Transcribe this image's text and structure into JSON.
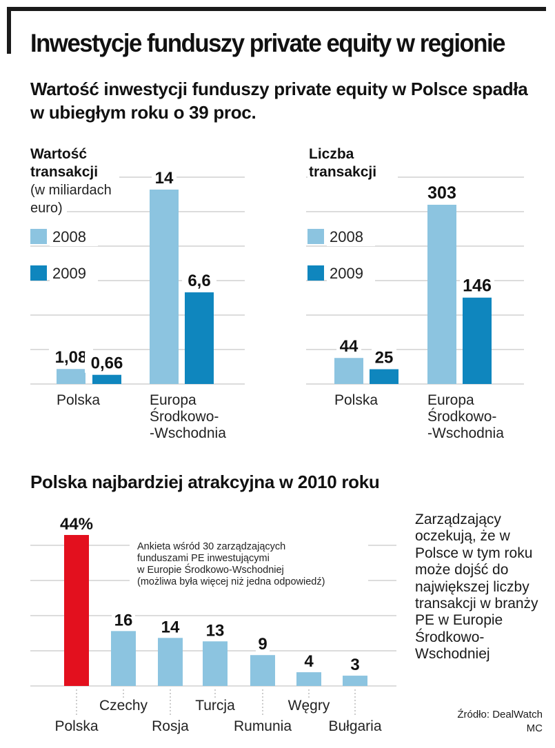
{
  "title": "Inwestycje funduszy private equity w regionie",
  "subtitle": "Wartość inwestycji funduszy private equity w Polsce spadła w ubiegłym roku o 39 proc.",
  "section2_title": "Polska najbardziej atrakcyjna w 2010 roku",
  "side_note": "Zarządzający oczekują, że w Polsce w tym roku może dojść do największej liczby transakcji w branży PE w Europie Środkowo-Wschodniej",
  "source": "Źródło: DealWatch",
  "author": "MC",
  "colors": {
    "light_blue": "#8cc4e0",
    "dark_blue": "#0f86be",
    "red": "#e3101e",
    "grid": "#b9b9b9"
  },
  "chart_data": [
    {
      "type": "bar",
      "title": [
        "Wartość",
        "transakcji"
      ],
      "subtitle": [
        "(w miliardach",
        "euro)"
      ],
      "categories": [
        [
          "Polska"
        ],
        [
          "Europa",
          "Środkowo-",
          "-Wschodnia"
        ]
      ],
      "series": [
        {
          "name": "2008",
          "values": [
            1.08,
            14
          ],
          "labels": [
            "1,08",
            "14"
          ],
          "color": "#8cc4e0"
        },
        {
          "name": "2009",
          "values": [
            0.66,
            6.6
          ],
          "labels": [
            "0,66",
            "6,6"
          ],
          "color": "#0f86be"
        }
      ],
      "ylim": [
        0,
        15
      ],
      "grid": true
    },
    {
      "type": "bar",
      "title": [
        "Liczba",
        "transakcji"
      ],
      "subtitle": [],
      "categories": [
        [
          "Polska"
        ],
        [
          "Europa",
          "Środkowo-",
          "-Wschodnia"
        ]
      ],
      "series": [
        {
          "name": "2008",
          "values": [
            44,
            303
          ],
          "labels": [
            "44",
            "303"
          ],
          "color": "#8cc4e0"
        },
        {
          "name": "2009",
          "values": [
            25,
            146
          ],
          "labels": [
            "25",
            "146"
          ],
          "color": "#0f86be"
        }
      ],
      "ylim": [
        0,
        320
      ],
      "grid": true
    },
    {
      "type": "bar",
      "categories": [
        "Polska",
        "Czechy",
        "Rosja",
        "Turcja",
        "Rumunia",
        "Węgry",
        "Bułgaria"
      ],
      "values": [
        44,
        16,
        14,
        13,
        9,
        4,
        3
      ],
      "labels": [
        "44%",
        "16",
        "14",
        "13",
        "9",
        "4",
        "3"
      ],
      "highlight": "Polska",
      "annotation": [
        "Ankieta wśród 30 zarządzających",
        "funduszami PE inwestującymi",
        "w Europie Środkowo-Wschodniej",
        "(możliwa była więcej niż jedna odpowiedź)"
      ],
      "ylim": [
        0,
        44
      ],
      "grid": true
    }
  ]
}
